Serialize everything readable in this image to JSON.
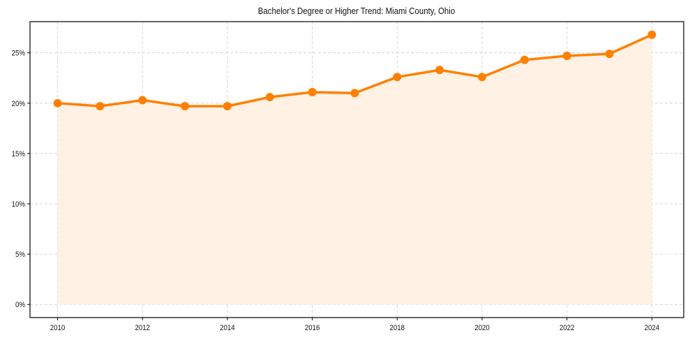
{
  "chart_data": {
    "type": "line",
    "title": "Bachelor's Degree or Higher Trend: Miami County, Ohio",
    "xlabel": "",
    "ylabel": "",
    "x": [
      2010,
      2011,
      2012,
      2013,
      2014,
      2015,
      2016,
      2017,
      2018,
      2019,
      2020,
      2021,
      2022,
      2023,
      2024
    ],
    "series": [
      {
        "name": "Bachelor's Degree or Higher (%)",
        "values": [
          20.0,
          19.7,
          20.3,
          19.7,
          19.7,
          20.6,
          21.1,
          21.0,
          22.6,
          23.3,
          22.6,
          24.3,
          24.7,
          24.9,
          26.8
        ],
        "color": "#ff8000",
        "fill_color": "#fff1e3",
        "markers": true,
        "area_fill": true
      }
    ],
    "x_ticks": [
      "2010",
      "2012",
      "2014",
      "2016",
      "2018",
      "2020",
      "2022",
      "2024"
    ],
    "x_tick_values": [
      2010,
      2012,
      2014,
      2016,
      2018,
      2020,
      2022,
      2024
    ],
    "y_ticks": [
      "0%",
      "5%",
      "10%",
      "15%",
      "20%",
      "25%"
    ],
    "y_tick_values": [
      0,
      5,
      10,
      15,
      20,
      25
    ],
    "xlim": [
      2009.35,
      2024.75
    ],
    "ylim": [
      -1.3,
      28.1
    ],
    "grid": true,
    "grid_style": "dashed",
    "legend": "none"
  }
}
